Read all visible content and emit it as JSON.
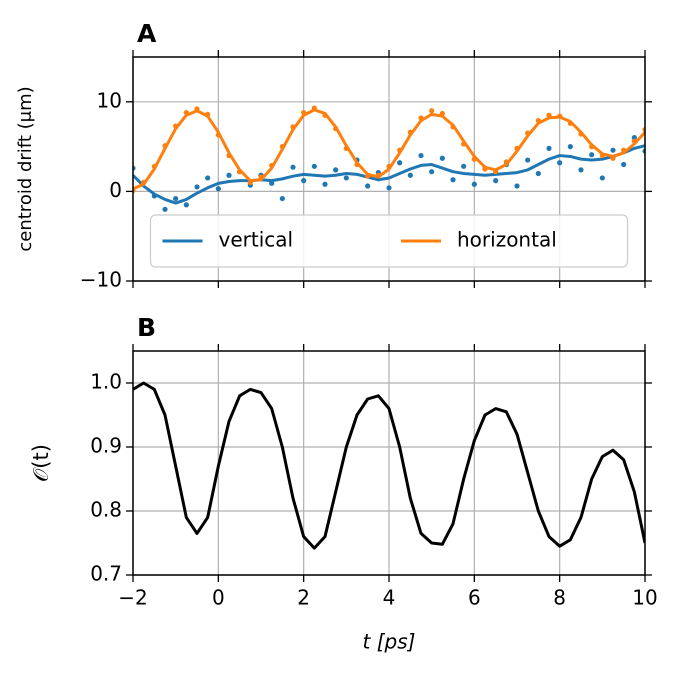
{
  "chart_data": [
    {
      "type": "line",
      "title": "A",
      "ylabel": "centroid drift  (μm)",
      "x": [
        -2,
        -1.75,
        -1.5,
        -1.25,
        -1,
        -0.75,
        -0.5,
        -0.25,
        0,
        0.25,
        0.5,
        0.75,
        1,
        1.25,
        1.5,
        1.75,
        2,
        2.25,
        2.5,
        2.75,
        3,
        3.25,
        3.5,
        3.75,
        4,
        4.25,
        4.5,
        4.75,
        5,
        5.25,
        5.5,
        5.75,
        6,
        6.25,
        6.5,
        6.75,
        7,
        7.25,
        7.5,
        7.75,
        8,
        8.25,
        8.5,
        8.75,
        9,
        9.25,
        9.5,
        9.75,
        10
      ],
      "series": [
        {
          "name": "vertical",
          "color": "#1f77b4",
          "values": [
            1.8,
            0.6,
            -0.3,
            -0.9,
            -1.3,
            -0.9,
            -0.2,
            0.4,
            0.9,
            1.1,
            1.2,
            1.2,
            1.3,
            1.2,
            1.4,
            1.7,
            1.9,
            1.8,
            1.7,
            1.8,
            2.0,
            1.9,
            1.6,
            1.3,
            1.5,
            2.0,
            2.5,
            2.9,
            3.0,
            2.6,
            2.2,
            2.0,
            1.9,
            1.8,
            1.9,
            2.0,
            2.1,
            2.4,
            3.0,
            3.6,
            4.0,
            3.9,
            3.6,
            3.5,
            3.6,
            3.9,
            4.3,
            4.8,
            5.1
          ],
          "points": [
            2.6,
            1.0,
            -0.5,
            -2.0,
            -0.8,
            -1.5,
            0.5,
            1.5,
            0.3,
            1.8,
            2.2,
            0.7,
            1.8,
            0.9,
            -0.8,
            2.7,
            1.2,
            2.8,
            0.8,
            2.4,
            1.5,
            3.5,
            0.6,
            2.1,
            0.4,
            3.2,
            1.8,
            4.0,
            2.2,
            3.7,
            1.3,
            2.8,
            0.8,
            2.6,
            1.2,
            3.0,
            0.6,
            3.5,
            2.0,
            4.8,
            3.2,
            5.0,
            2.4,
            4.1,
            1.5,
            4.6,
            3.0,
            6.0,
            4.5
          ]
        },
        {
          "name": "horizontal",
          "color": "#ff7f0e",
          "values": [
            0.3,
            0.8,
            2.5,
            4.8,
            7.0,
            8.5,
            9.0,
            8.4,
            6.6,
            4.3,
            2.4,
            1.2,
            1.3,
            2.6,
            4.7,
            6.9,
            8.5,
            9.1,
            8.7,
            7.2,
            5.1,
            3.2,
            1.9,
            1.6,
            2.5,
            4.3,
            6.3,
            7.9,
            8.6,
            8.4,
            7.4,
            5.6,
            3.9,
            2.7,
            2.4,
            3.0,
            4.5,
            6.2,
            7.6,
            8.2,
            8.3,
            7.8,
            6.6,
            5.2,
            4.2,
            3.9,
            4.3,
            5.3,
            6.6
          ],
          "points": [
            0.1,
            1.0,
            2.8,
            5.1,
            7.3,
            8.8,
            9.2,
            8.6,
            6.3,
            4.0,
            2.2,
            1.0,
            1.6,
            2.9,
            5.0,
            7.2,
            8.8,
            9.3,
            8.5,
            7.0,
            4.8,
            3.0,
            1.7,
            1.8,
            2.8,
            4.6,
            6.6,
            8.2,
            9.0,
            8.7,
            7.2,
            5.3,
            3.6,
            2.5,
            2.2,
            3.3,
            4.8,
            6.5,
            7.9,
            8.5,
            8.4,
            7.6,
            6.4,
            5.0,
            4.0,
            3.7,
            4.6,
            5.6,
            6.9
          ]
        }
      ],
      "xlim": [
        -2,
        10
      ],
      "xticks": [
        {
          "value": -2,
          "label": "−2"
        },
        0,
        2,
        4,
        6,
        8,
        10
      ],
      "ylim": [
        -10,
        15
      ],
      "yticks": [
        {
          "value": -10,
          "label": "−10"
        },
        0,
        10
      ],
      "grid": true,
      "legend": "lower center"
    },
    {
      "type": "line",
      "title": "B",
      "ylabel": "𝒪(t)",
      "xlabel": "t [ps]",
      "x": [
        -2,
        -1.75,
        -1.5,
        -1.25,
        -1,
        -0.75,
        -0.5,
        -0.25,
        0,
        0.25,
        0.5,
        0.75,
        1,
        1.25,
        1.5,
        1.75,
        2,
        2.25,
        2.5,
        2.75,
        3,
        3.25,
        3.5,
        3.75,
        4,
        4.25,
        4.5,
        4.75,
        5,
        5.25,
        5.5,
        5.75,
        6,
        6.25,
        6.5,
        6.75,
        7,
        7.25,
        7.5,
        7.75,
        8,
        8.25,
        8.5,
        8.75,
        9,
        9.25,
        9.5,
        9.75,
        10
      ],
      "series": [
        {
          "color": "#000000",
          "values": [
            0.99,
            1.0,
            0.99,
            0.95,
            0.87,
            0.79,
            0.765,
            0.79,
            0.87,
            0.94,
            0.98,
            0.99,
            0.985,
            0.96,
            0.9,
            0.82,
            0.76,
            0.742,
            0.76,
            0.83,
            0.9,
            0.95,
            0.975,
            0.98,
            0.96,
            0.9,
            0.82,
            0.765,
            0.75,
            0.748,
            0.78,
            0.85,
            0.91,
            0.95,
            0.96,
            0.955,
            0.92,
            0.86,
            0.8,
            0.76,
            0.745,
            0.755,
            0.79,
            0.85,
            0.885,
            0.895,
            0.88,
            0.83,
            0.75
          ]
        }
      ],
      "xlim": [
        -2,
        10
      ],
      "xticks": [
        {
          "value": -2,
          "label": "−2"
        },
        0,
        2,
        4,
        6,
        8,
        10
      ],
      "ylim": [
        0.7,
        1.05
      ],
      "yticks": [
        {
          "value": 0.7,
          "label": "0.7"
        },
        0.8,
        0.9,
        {
          "value": 1.0,
          "label": "1.0"
        }
      ],
      "grid": true
    }
  ]
}
